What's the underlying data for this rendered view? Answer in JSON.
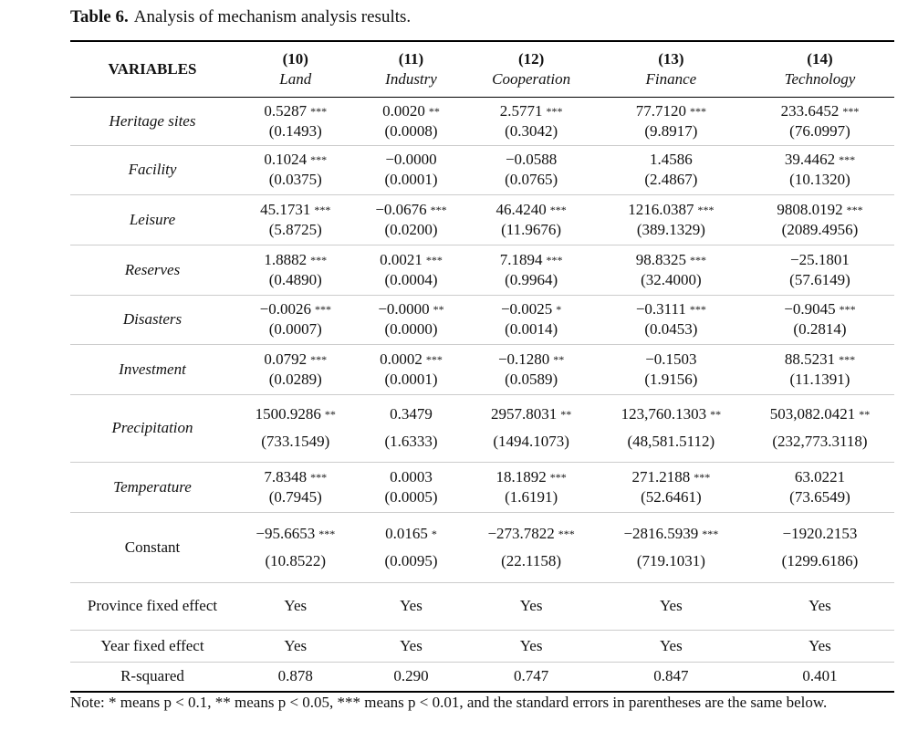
{
  "caption": {
    "label": "Table 6.",
    "text": "Analysis of mechanism analysis results."
  },
  "header": {
    "variables": "VARIABLES",
    "columns": [
      {
        "number": "(10)",
        "name": "Land"
      },
      {
        "number": "(11)",
        "name": "Industry"
      },
      {
        "number": "(12)",
        "name": "Cooperation"
      },
      {
        "number": "(13)",
        "name": "Finance"
      },
      {
        "number": "(14)",
        "name": "Technology"
      }
    ]
  },
  "rows": [
    {
      "label": "Heritage sites",
      "cells": [
        {
          "coef": "0.5287",
          "stars": "***",
          "se": "(0.1493)"
        },
        {
          "coef": "0.0020",
          "stars": "**",
          "se": "(0.0008)"
        },
        {
          "coef": "2.5771",
          "stars": "***",
          "se": "(0.3042)"
        },
        {
          "coef": "77.7120",
          "stars": "***",
          "se": "(9.8917)"
        },
        {
          "coef": "233.6452",
          "stars": "***",
          "se": "(76.0997)"
        }
      ]
    },
    {
      "label": "Facility",
      "cells": [
        {
          "coef": "0.1024",
          "stars": "***",
          "se": "(0.0375)"
        },
        {
          "coef": "−0.0000",
          "se": "(0.0001)"
        },
        {
          "coef": "−0.0588",
          "se": "(0.0765)"
        },
        {
          "coef": "1.4586",
          "se": "(2.4867)"
        },
        {
          "coef": "39.4462",
          "stars": "***",
          "se": "(10.1320)"
        }
      ]
    },
    {
      "label": "Leisure",
      "cells": [
        {
          "coef": "45.1731",
          "stars": "***",
          "se": "(5.8725)"
        },
        {
          "coef": "−0.0676",
          "stars": "***",
          "se": "(0.0200)"
        },
        {
          "coef": "46.4240",
          "stars": "***",
          "se": "(11.9676)"
        },
        {
          "coef": "1216.0387",
          "stars": "***",
          "se": "(389.1329)"
        },
        {
          "coef": "9808.0192",
          "stars": "***",
          "se": "(2089.4956)"
        }
      ]
    },
    {
      "label": "Reserves",
      "cells": [
        {
          "coef": "1.8882",
          "stars": "***",
          "se": "(0.4890)"
        },
        {
          "coef": "0.0021",
          "stars": "***",
          "se": "(0.0004)"
        },
        {
          "coef": "7.1894",
          "stars": "***",
          "se": "(0.9964)"
        },
        {
          "coef": "98.8325",
          "stars": "***",
          "se": "(32.4000)"
        },
        {
          "coef": "−25.1801",
          "se": "(57.6149)"
        }
      ]
    },
    {
      "label": "Disasters",
      "cells": [
        {
          "coef": "−0.0026",
          "stars": "***",
          "se": "(0.0007)"
        },
        {
          "coef": "−0.0000",
          "stars": "**",
          "se": "(0.0000)"
        },
        {
          "coef": "−0.0025",
          "stars": "*",
          "se": "(0.0014)"
        },
        {
          "coef": "−0.3111",
          "stars": "***",
          "se": "(0.0453)"
        },
        {
          "coef": "−0.9045",
          "stars": "***",
          "se": "(0.2814)"
        }
      ]
    },
    {
      "label": "Investment",
      "cells": [
        {
          "coef": "0.0792",
          "stars": "***",
          "se": "(0.0289)"
        },
        {
          "coef": "0.0002",
          "stars": "***",
          "se": "(0.0001)"
        },
        {
          "coef": "−0.1280",
          "stars": "**",
          "se": "(0.0589)"
        },
        {
          "coef": "−0.1503",
          "se": "(1.9156)"
        },
        {
          "coef": "88.5231",
          "stars": "***",
          "se": "(11.1391)"
        }
      ]
    },
    {
      "label": "Precipitation",
      "cells": [
        {
          "coef": "1500.9286",
          "stars": "**",
          "se": "(733.1549)"
        },
        {
          "coef": "0.3479",
          "se": "(1.6333)"
        },
        {
          "coef": "2957.8031",
          "stars": "**",
          "se": "(1494.1073)"
        },
        {
          "coef": "123,760.1303",
          "stars": "**",
          "se": "(48,581.5112)"
        },
        {
          "coef": "503,082.0421",
          "stars": "**",
          "se": "(232,773.3118)"
        }
      ]
    },
    {
      "label": "Temperature",
      "cells": [
        {
          "coef": "7.8348",
          "stars": "***",
          "se": "(0.7945)"
        },
        {
          "coef": "0.0003",
          "se": "(0.0005)"
        },
        {
          "coef": "18.1892",
          "stars": "***",
          "se": "(1.6191)"
        },
        {
          "coef": "271.2188",
          "stars": "***",
          "se": "(52.6461)"
        },
        {
          "coef": "63.0221",
          "se": "(73.6549)"
        }
      ]
    },
    {
      "label": "Constant",
      "cells": [
        {
          "coef": "−95.6653",
          "stars": "***",
          "se": "(10.8522)"
        },
        {
          "coef": "0.0165",
          "stars": "*",
          "se": "(0.0095)"
        },
        {
          "coef": "−273.7822",
          "stars": "***",
          "se": "(22.1158)"
        },
        {
          "coef": "−2816.5939",
          "stars": "***",
          "se": "(719.1031)"
        },
        {
          "coef": "−1920.2153",
          "se": "(1299.6186)"
        }
      ]
    },
    {
      "label": "Province fixed effect",
      "cells": [
        "Yes",
        "Yes",
        "Yes",
        "Yes",
        "Yes"
      ]
    },
    {
      "label": "Year fixed effect",
      "cells": [
        "Yes",
        "Yes",
        "Yes",
        "Yes",
        "Yes"
      ]
    },
    {
      "label": "R-squared",
      "cells": [
        "0.878",
        "0.290",
        "0.747",
        "0.847",
        "0.401"
      ]
    }
  ],
  "note": "Note: * means p < 0.1, ** means p < 0.05, *** means p < 0.01, and the standard errors in parentheses are the same below."
}
